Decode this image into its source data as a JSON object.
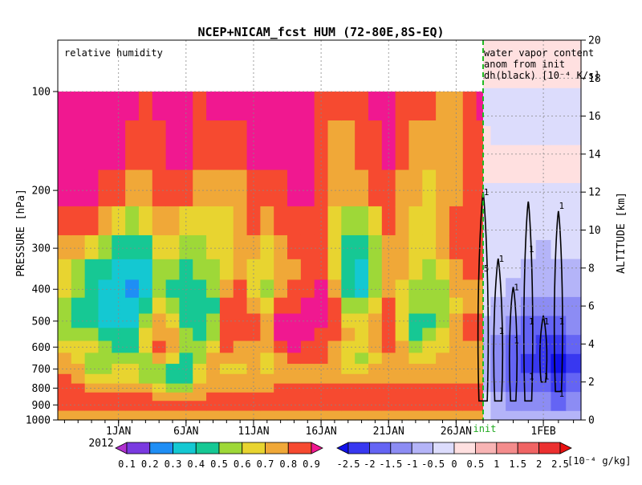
{
  "chart_data": {
    "type": "heatmap",
    "title": "NCEP+NICAM_fcst HUM (72-80E,8S-EQ)",
    "left_panel": {
      "label": "relative humidity",
      "variable": "relative humidity",
      "x": [
        "2011-12-28",
        "2011-12-29",
        "2011-12-30",
        "2011-12-31",
        "2012-01-01",
        "2012-01-02",
        "2012-01-03",
        "2012-01-04",
        "2012-01-05",
        "2012-01-06",
        "2012-01-07",
        "2012-01-08",
        "2012-01-09",
        "2012-01-10",
        "2012-01-11",
        "2012-01-12",
        "2012-01-13",
        "2012-01-14",
        "2012-01-15",
        "2012-01-16",
        "2012-01-17",
        "2012-01-18",
        "2012-01-19",
        "2012-01-20",
        "2012-01-21",
        "2012-01-22",
        "2012-01-23",
        "2012-01-24",
        "2012-01-25",
        "2012-01-26",
        "2012-01-27",
        "2012-01-28"
      ],
      "y_pressure_hPa": [
        100,
        150,
        200,
        250,
        300,
        350,
        400,
        450,
        500,
        550,
        600,
        650,
        700,
        750,
        800,
        850,
        900,
        925,
        950,
        975,
        1000
      ],
      "values": [
        [
          0.9,
          0.9,
          0.9,
          0.85,
          0.75,
          0.65,
          0.6,
          0.55,
          0.5,
          0.55,
          0.65,
          0.7,
          0.75,
          0.8,
          0.82,
          0.85,
          0.85,
          0.85,
          0.75,
          0.7,
          0.7
        ],
        [
          0.9,
          0.9,
          0.9,
          0.85,
          0.7,
          0.55,
          0.5,
          0.45,
          0.45,
          0.5,
          0.6,
          0.65,
          0.7,
          0.75,
          0.8,
          0.82,
          0.85,
          0.85,
          0.75,
          0.7,
          0.7
        ],
        [
          0.9,
          0.9,
          0.9,
          0.8,
          0.65,
          0.45,
          0.4,
          0.4,
          0.45,
          0.55,
          0.6,
          0.55,
          0.55,
          0.65,
          0.75,
          0.8,
          0.85,
          0.85,
          0.75,
          0.7,
          0.7
        ],
        [
          0.9,
          0.9,
          0.85,
          0.7,
          0.5,
          0.4,
          0.35,
          0.3,
          0.35,
          0.45,
          0.5,
          0.5,
          0.55,
          0.65,
          0.75,
          0.8,
          0.85,
          0.85,
          0.75,
          0.7,
          0.7
        ],
        [
          0.9,
          0.9,
          0.85,
          0.6,
          0.45,
          0.35,
          0.3,
          0.3,
          0.35,
          0.4,
          0.45,
          0.55,
          0.6,
          0.65,
          0.75,
          0.8,
          0.85,
          0.85,
          0.75,
          0.7,
          0.7
        ],
        [
          0.9,
          0.8,
          0.7,
          0.55,
          0.4,
          0.3,
          0.25,
          0.3,
          0.35,
          0.4,
          0.45,
          0.55,
          0.6,
          0.65,
          0.75,
          0.8,
          0.85,
          0.85,
          0.75,
          0.7,
          0.7
        ],
        [
          0.85,
          0.8,
          0.7,
          0.6,
          0.45,
          0.35,
          0.3,
          0.4,
          0.55,
          0.65,
          0.6,
          0.55,
          0.5,
          0.55,
          0.7,
          0.8,
          0.85,
          0.85,
          0.75,
          0.7,
          0.7
        ],
        [
          0.9,
          0.85,
          0.8,
          0.75,
          0.6,
          0.5,
          0.55,
          0.65,
          0.7,
          0.75,
          0.8,
          0.75,
          0.55,
          0.5,
          0.65,
          0.75,
          0.85,
          0.85,
          0.75,
          0.7,
          0.7
        ],
        [
          0.9,
          0.9,
          0.85,
          0.7,
          0.6,
          0.5,
          0.45,
          0.5,
          0.6,
          0.7,
          0.75,
          0.6,
          0.4,
          0.4,
          0.55,
          0.7,
          0.8,
          0.85,
          0.75,
          0.7,
          0.7
        ],
        [
          0.9,
          0.9,
          0.85,
          0.65,
          0.55,
          0.45,
          0.4,
          0.4,
          0.45,
          0.5,
          0.5,
          0.45,
          0.4,
          0.45,
          0.55,
          0.7,
          0.8,
          0.85,
          0.75,
          0.7,
          0.7
        ],
        [
          0.85,
          0.8,
          0.7,
          0.6,
          0.55,
          0.5,
          0.45,
          0.4,
          0.4,
          0.45,
          0.5,
          0.55,
          0.6,
          0.6,
          0.7,
          0.75,
          0.8,
          0.85,
          0.75,
          0.7,
          0.7
        ],
        [
          0.9,
          0.85,
          0.7,
          0.65,
          0.6,
          0.55,
          0.5,
          0.45,
          0.5,
          0.55,
          0.65,
          0.7,
          0.7,
          0.75,
          0.75,
          0.8,
          0.85,
          0.85,
          0.75,
          0.7,
          0.7
        ],
        [
          0.9,
          0.85,
          0.7,
          0.65,
          0.65,
          0.65,
          0.7,
          0.8,
          0.85,
          0.85,
          0.8,
          0.7,
          0.65,
          0.7,
          0.75,
          0.8,
          0.85,
          0.85,
          0.75,
          0.7,
          0.7
        ],
        [
          0.9,
          0.85,
          0.7,
          0.75,
          0.75,
          0.7,
          0.8,
          0.85,
          0.85,
          0.8,
          0.75,
          0.7,
          0.65,
          0.7,
          0.75,
          0.8,
          0.85,
          0.85,
          0.75,
          0.7,
          0.7
        ],
        [
          0.9,
          0.9,
          0.85,
          0.8,
          0.7,
          0.65,
          0.6,
          0.7,
          0.8,
          0.8,
          0.75,
          0.7,
          0.7,
          0.7,
          0.75,
          0.8,
          0.85,
          0.85,
          0.75,
          0.7,
          0.7
        ],
        [
          0.9,
          0.9,
          0.85,
          0.7,
          0.65,
          0.6,
          0.55,
          0.6,
          0.7,
          0.75,
          0.7,
          0.65,
          0.65,
          0.7,
          0.75,
          0.8,
          0.85,
          0.85,
          0.75,
          0.7,
          0.7
        ],
        [
          0.9,
          0.9,
          0.85,
          0.8,
          0.75,
          0.7,
          0.75,
          0.85,
          0.9,
          0.9,
          0.85,
          0.75,
          0.7,
          0.75,
          0.8,
          0.8,
          0.85,
          0.85,
          0.75,
          0.7,
          0.7
        ],
        [
          0.9,
          0.9,
          0.9,
          0.85,
          0.8,
          0.75,
          0.8,
          0.85,
          0.9,
          0.9,
          0.9,
          0.8,
          0.75,
          0.75,
          0.8,
          0.8,
          0.85,
          0.85,
          0.75,
          0.7,
          0.7
        ],
        [
          0.9,
          0.9,
          0.9,
          0.85,
          0.8,
          0.8,
          0.85,
          0.9,
          0.9,
          0.9,
          0.85,
          0.8,
          0.75,
          0.75,
          0.8,
          0.8,
          0.85,
          0.85,
          0.75,
          0.7,
          0.7
        ],
        [
          0.85,
          0.8,
          0.8,
          0.85,
          0.85,
          0.85,
          0.9,
          0.9,
          0.9,
          0.85,
          0.85,
          0.8,
          0.75,
          0.75,
          0.8,
          0.8,
          0.85,
          0.85,
          0.75,
          0.7,
          0.7
        ],
        [
          0.8,
          0.75,
          0.7,
          0.65,
          0.6,
          0.6,
          0.7,
          0.8,
          0.85,
          0.8,
          0.75,
          0.7,
          0.7,
          0.75,
          0.8,
          0.8,
          0.85,
          0.85,
          0.75,
          0.7,
          0.7
        ],
        [
          0.8,
          0.75,
          0.7,
          0.55,
          0.45,
          0.4,
          0.4,
          0.55,
          0.65,
          0.7,
          0.65,
          0.6,
          0.65,
          0.7,
          0.8,
          0.8,
          0.85,
          0.85,
          0.75,
          0.7,
          0.7
        ],
        [
          0.85,
          0.8,
          0.7,
          0.55,
          0.4,
          0.35,
          0.35,
          0.5,
          0.6,
          0.65,
          0.6,
          0.55,
          0.65,
          0.7,
          0.8,
          0.8,
          0.85,
          0.85,
          0.75,
          0.7,
          0.7
        ],
        [
          0.9,
          0.85,
          0.8,
          0.65,
          0.55,
          0.5,
          0.5,
          0.6,
          0.7,
          0.75,
          0.7,
          0.65,
          0.7,
          0.75,
          0.8,
          0.8,
          0.85,
          0.85,
          0.75,
          0.7,
          0.7
        ],
        [
          0.9,
          0.9,
          0.85,
          0.8,
          0.7,
          0.7,
          0.75,
          0.8,
          0.85,
          0.85,
          0.8,
          0.75,
          0.75,
          0.75,
          0.8,
          0.8,
          0.85,
          0.85,
          0.75,
          0.7,
          0.7
        ],
        [
          0.85,
          0.8,
          0.75,
          0.7,
          0.7,
          0.7,
          0.65,
          0.6,
          0.6,
          0.65,
          0.7,
          0.7,
          0.7,
          0.75,
          0.8,
          0.8,
          0.85,
          0.85,
          0.75,
          0.7,
          0.7
        ],
        [
          0.85,
          0.75,
          0.7,
          0.65,
          0.65,
          0.6,
          0.55,
          0.5,
          0.45,
          0.45,
          0.55,
          0.65,
          0.7,
          0.75,
          0.8,
          0.8,
          0.85,
          0.85,
          0.75,
          0.7,
          0.7
        ],
        [
          0.8,
          0.7,
          0.65,
          0.65,
          0.6,
          0.55,
          0.55,
          0.5,
          0.45,
          0.5,
          0.6,
          0.65,
          0.7,
          0.75,
          0.8,
          0.8,
          0.85,
          0.85,
          0.75,
          0.7,
          0.7
        ],
        [
          0.75,
          0.7,
          0.7,
          0.75,
          0.7,
          0.6,
          0.55,
          0.5,
          0.55,
          0.6,
          0.65,
          0.7,
          0.7,
          0.75,
          0.8,
          0.8,
          0.85,
          0.85,
          0.75,
          0.7,
          0.7
        ],
        [
          0.7,
          0.7,
          0.75,
          0.8,
          0.8,
          0.75,
          0.7,
          0.65,
          0.7,
          0.75,
          0.75,
          0.7,
          0.7,
          0.75,
          0.8,
          0.8,
          0.85,
          0.85,
          0.75,
          0.7,
          0.7
        ],
        [
          0.85,
          0.8,
          0.8,
          0.85,
          0.85,
          0.8,
          0.75,
          0.75,
          0.8,
          0.8,
          0.75,
          0.7,
          0.7,
          0.75,
          0.8,
          0.8,
          0.85,
          0.85,
          0.75,
          0.7,
          0.7
        ],
        [
          0.9,
          0.85,
          0.85,
          0.85,
          0.85,
          0.8,
          0.75,
          0.75,
          0.8,
          0.8,
          0.75,
          0.7,
          0.7,
          0.75,
          0.8,
          0.8,
          0.85,
          0.85,
          0.75,
          0.7,
          0.7
        ]
      ]
    },
    "right_panel": {
      "label_lines": [
        "water vapor content",
        "anom from init",
        "dh(black) [10⁻⁴ K/s]"
      ],
      "x": [
        "2012-01-28",
        "2012-01-29",
        "2012-01-30",
        "2012-01-31",
        "2012-02-01",
        "2012-02-02",
        "2012-02-03"
      ],
      "altitude_km": [
        0,
        1,
        2,
        3,
        4,
        5,
        6,
        7,
        8,
        9,
        10,
        11,
        12,
        13,
        14,
        15,
        16,
        17,
        18,
        19,
        20
      ],
      "anomaly_values": [
        [
          -0.5,
          -0.7,
          -0.8,
          -0.8,
          -0.9,
          -1.0,
          -1.0
        ],
        [
          -0.5,
          -1.0,
          -1.2,
          -1.2,
          -1.4,
          -1.6,
          -1.5
        ],
        [
          -0.7,
          -1.2,
          -1.6,
          -1.8,
          -2.0,
          -2.2,
          -2.0
        ],
        [
          -0.8,
          -1.5,
          -1.8,
          -2.1,
          -2.5,
          -2.6,
          -2.3
        ],
        [
          -0.8,
          -1.3,
          -1.6,
          -2.0,
          -2.5,
          -2.4,
          -2.0
        ],
        [
          -0.6,
          -1.0,
          -1.3,
          -1.6,
          -2.0,
          -1.8,
          -1.5
        ],
        [
          -0.4,
          -0.7,
          -0.9,
          -1.1,
          -1.4,
          -1.3,
          -1.1
        ],
        [
          -0.3,
          -0.5,
          -0.6,
          -0.8,
          -1.0,
          -0.9,
          -0.8
        ],
        [
          -0.2,
          -0.4,
          -0.5,
          -0.6,
          -0.8,
          -0.7,
          -0.6
        ],
        [
          -0.2,
          -0.3,
          -0.4,
          -0.5,
          -0.6,
          -0.5,
          -0.5
        ],
        [
          -0.2,
          -0.3,
          -0.3,
          -0.4,
          -0.5,
          -0.4,
          -0.4
        ],
        [
          -0.1,
          -0.2,
          -0.3,
          -0.3,
          -0.4,
          -0.3,
          -0.3
        ],
        [
          -0.1,
          -0.2,
          -0.2,
          -0.2,
          -0.3,
          -0.2,
          -0.2
        ],
        [
          0.1,
          0.2,
          0.2,
          0.2,
          0.3,
          0.3,
          0.2
        ],
        [
          0.1,
          0.2,
          0.2,
          0.3,
          0.3,
          0.2,
          0.2
        ],
        [
          0.0,
          -0.1,
          -0.2,
          -0.2,
          -0.2,
          -0.2,
          -0.1
        ],
        [
          -0.1,
          -0.2,
          -0.2,
          -0.2,
          -0.2,
          -0.2,
          -0.1
        ],
        [
          -0.1,
          -0.1,
          -0.1,
          -0.1,
          -0.1,
          -0.1,
          -0.1
        ],
        [
          0.1,
          0.2,
          0.3,
          0.3,
          0.3,
          0.2,
          0.2
        ],
        [
          0.1,
          0.2,
          0.3,
          0.3,
          0.3,
          0.2,
          0.2
        ],
        [
          0.1,
          0.2,
          0.2,
          0.3,
          0.3,
          0.2,
          0.2
        ]
      ],
      "dh_contour_labels": [
        "1",
        "1",
        "5",
        "1",
        "1",
        "1",
        "1",
        "1",
        "1",
        "1",
        "1",
        "1",
        "1",
        "1"
      ]
    },
    "xaxis": {
      "left_ticks": [
        {
          "x": "2012-01-01",
          "label": "1JAN"
        },
        {
          "x": "2012-01-06",
          "label": "6JAN"
        },
        {
          "x": "2012-01-11",
          "label": "11JAN"
        },
        {
          "x": "2012-01-16",
          "label": "16JAN"
        },
        {
          "x": "2012-01-21",
          "label": "21JAN"
        },
        {
          "x": "2012-01-26",
          "label": "26JAN"
        }
      ],
      "right_ticks": [
        {
          "x": "2012-02-01",
          "label": "1FEB"
        }
      ],
      "year_label": "2012",
      "init_label": "init",
      "init_date": "2012-01-28"
    },
    "yaxis_left": {
      "label": "PRESSURE [hPa]",
      "ticks": [
        100,
        200,
        300,
        400,
        500,
        600,
        700,
        800,
        900,
        1000
      ]
    },
    "yaxis_right": {
      "label": "ALTITUDE [km]",
      "ticks": [
        0,
        2,
        4,
        6,
        8,
        10,
        12,
        14,
        16,
        18,
        20
      ]
    },
    "colorbar_rh": {
      "labels": [
        "0.1",
        "0.2",
        "0.3",
        "0.4",
        "0.5",
        "0.6",
        "0.7",
        "0.8",
        "0.9"
      ],
      "colors": [
        "#b030d0",
        "#7a3ae0",
        "#1f8ef5",
        "#14c8d2",
        "#16c894",
        "#9ed838",
        "#e8d430",
        "#f0a838",
        "#f64a30",
        "#f01890"
      ]
    },
    "colorbar_wv": {
      "labels": [
        "-2.5",
        "-2",
        "-1.5",
        "-1",
        "-0.5",
        "0",
        "0.5",
        "1",
        "1.5",
        "2",
        "2.5"
      ],
      "unit": "[10⁻⁴ g/kg]",
      "colors": [
        "#1010e8",
        "#3838f0",
        "#6464f4",
        "#8c8cf4",
        "#b4b4f8",
        "#dcdcfc",
        "#ffe0e0",
        "#f8b4b4",
        "#f48c8c",
        "#f06464",
        "#ec3030",
        "#e81010"
      ]
    },
    "grid": true
  }
}
